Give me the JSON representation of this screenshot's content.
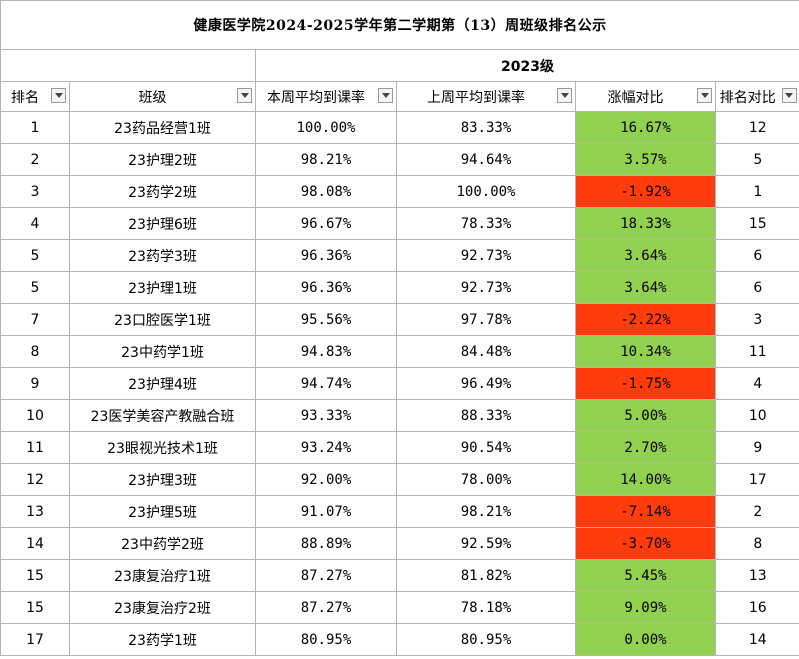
{
  "title": "健康医学院2024-2025学年第二学期第（13）周班级排名公示",
  "year_label": "2023级",
  "headers": {
    "rank": "排名",
    "class": "班级",
    "this_week": "本周平均到课率",
    "last_week": "上周平均到课率",
    "change": "涨幅对比",
    "rank_compare": "排名对比"
  },
  "colors": {
    "increase": "#92d050",
    "decrease": "#ff3c0c"
  },
  "rows": [
    {
      "rank": "1",
      "class": "23药品经营1班",
      "this_week": "100.00%",
      "last_week": "83.33%",
      "change": "16.67%",
      "trend": "up",
      "prev_rank": "12"
    },
    {
      "rank": "2",
      "class": "23护理2班",
      "this_week": "98.21%",
      "last_week": "94.64%",
      "change": "3.57%",
      "trend": "up",
      "prev_rank": "5"
    },
    {
      "rank": "3",
      "class": "23药学2班",
      "this_week": "98.08%",
      "last_week": "100.00%",
      "change": "-1.92%",
      "trend": "down",
      "prev_rank": "1"
    },
    {
      "rank": "4",
      "class": "23护理6班",
      "this_week": "96.67%",
      "last_week": "78.33%",
      "change": "18.33%",
      "trend": "up",
      "prev_rank": "15"
    },
    {
      "rank": "5",
      "class": "23药学3班",
      "this_week": "96.36%",
      "last_week": "92.73%",
      "change": "3.64%",
      "trend": "up",
      "prev_rank": "6"
    },
    {
      "rank": "5",
      "class": "23护理1班",
      "this_week": "96.36%",
      "last_week": "92.73%",
      "change": "3.64%",
      "trend": "up",
      "prev_rank": "6"
    },
    {
      "rank": "7",
      "class": "23口腔医学1班",
      "this_week": "95.56%",
      "last_week": "97.78%",
      "change": "-2.22%",
      "trend": "down",
      "prev_rank": "3"
    },
    {
      "rank": "8",
      "class": "23中药学1班",
      "this_week": "94.83%",
      "last_week": "84.48%",
      "change": "10.34%",
      "trend": "up",
      "prev_rank": "11"
    },
    {
      "rank": "9",
      "class": "23护理4班",
      "this_week": "94.74%",
      "last_week": "96.49%",
      "change": "-1.75%",
      "trend": "down",
      "prev_rank": "4"
    },
    {
      "rank": "10",
      "class": "23医学美容产教融合班",
      "this_week": "93.33%",
      "last_week": "88.33%",
      "change": "5.00%",
      "trend": "up",
      "prev_rank": "10"
    },
    {
      "rank": "11",
      "class": "23眼视光技术1班",
      "this_week": "93.24%",
      "last_week": "90.54%",
      "change": "2.70%",
      "trend": "up",
      "prev_rank": "9"
    },
    {
      "rank": "12",
      "class": "23护理3班",
      "this_week": "92.00%",
      "last_week": "78.00%",
      "change": "14.00%",
      "trend": "up",
      "prev_rank": "17"
    },
    {
      "rank": "13",
      "class": "23护理5班",
      "this_week": "91.07%",
      "last_week": "98.21%",
      "change": "-7.14%",
      "trend": "down",
      "prev_rank": "2"
    },
    {
      "rank": "14",
      "class": "23中药学2班",
      "this_week": "88.89%",
      "last_week": "92.59%",
      "change": "-3.70%",
      "trend": "down",
      "prev_rank": "8"
    },
    {
      "rank": "15",
      "class": "23康复治疗1班",
      "this_week": "87.27%",
      "last_week": "81.82%",
      "change": "5.45%",
      "trend": "up",
      "prev_rank": "13"
    },
    {
      "rank": "15",
      "class": "23康复治疗2班",
      "this_week": "87.27%",
      "last_week": "78.18%",
      "change": "9.09%",
      "trend": "up",
      "prev_rank": "16"
    },
    {
      "rank": "17",
      "class": "23药学1班",
      "this_week": "80.95%",
      "last_week": "80.95%",
      "change": "0.00%",
      "trend": "up",
      "prev_rank": "14"
    }
  ]
}
